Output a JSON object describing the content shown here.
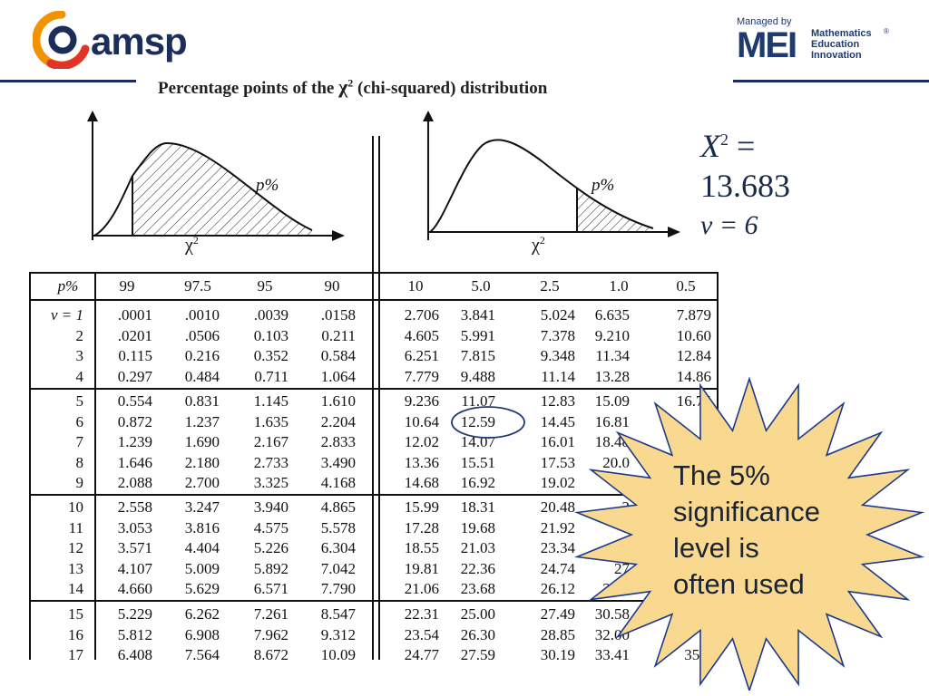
{
  "header": {
    "logo_text": "amsp",
    "managed_by": "Managed by",
    "mei_mark": "MEI",
    "mei_line1": "Mathematics",
    "mei_line2": "Education",
    "mei_line3": "Innovation",
    "reg": "®"
  },
  "title": {
    "prefix": "Percentage points of the ",
    "chi": "χ",
    "sup": "2",
    "suffix": " (chi-squared) distribution"
  },
  "graphs": {
    "left_p": "p%",
    "right_p": "p%",
    "left_axis": "χ",
    "right_axis": "χ",
    "sup": "2"
  },
  "annotation": {
    "x_label": "X",
    "sup": "2",
    "equals": " =",
    "value": "13.683",
    "nu_label": "ν = 6"
  },
  "table": {
    "p_label": "p%",
    "left_headers": [
      "99",
      "97.5",
      "95",
      "90"
    ],
    "right_headers": [
      "10",
      "5.0",
      "2.5",
      "1.0",
      "0.5"
    ],
    "row_labels": [
      "ν = 1",
      "2",
      "3",
      "4",
      "5",
      "6",
      "7",
      "8",
      "9",
      "10",
      "11",
      "12",
      "13",
      "14",
      "15",
      "16",
      "17"
    ],
    "left_rows": [
      [
        ".0001",
        ".0010",
        ".0039",
        ".0158"
      ],
      [
        ".0201",
        ".0506",
        "0.103",
        "0.211"
      ],
      [
        "0.115",
        "0.216",
        "0.352",
        "0.584"
      ],
      [
        "0.297",
        "0.484",
        "0.711",
        "1.064"
      ],
      [
        "0.554",
        "0.831",
        "1.145",
        "1.610"
      ],
      [
        "0.872",
        "1.237",
        "1.635",
        "2.204"
      ],
      [
        "1.239",
        "1.690",
        "2.167",
        "2.833"
      ],
      [
        "1.646",
        "2.180",
        "2.733",
        "3.490"
      ],
      [
        "2.088",
        "2.700",
        "3.325",
        "4.168"
      ],
      [
        "2.558",
        "3.247",
        "3.940",
        "4.865"
      ],
      [
        "3.053",
        "3.816",
        "4.575",
        "5.578"
      ],
      [
        "3.571",
        "4.404",
        "5.226",
        "6.304"
      ],
      [
        "4.107",
        "5.009",
        "5.892",
        "7.042"
      ],
      [
        "4.660",
        "5.629",
        "6.571",
        "7.790"
      ],
      [
        "5.229",
        "6.262",
        "7.261",
        "8.547"
      ],
      [
        "5.812",
        "6.908",
        "7.962",
        "9.312"
      ],
      [
        "6.408",
        "7.564",
        "8.672",
        "10.09"
      ]
    ],
    "right_rows": [
      [
        "2.706",
        "3.841",
        "5.024",
        "6.635",
        "7.879"
      ],
      [
        "4.605",
        "5.991",
        "7.378",
        "9.210",
        "10.60"
      ],
      [
        "6.251",
        "7.815",
        "9.348",
        "11.34",
        "12.84"
      ],
      [
        "7.779",
        "9.488",
        "11.14",
        "13.28",
        "14.86"
      ],
      [
        "9.236",
        "11.07",
        "12.83",
        "15.09",
        "16.75"
      ],
      [
        "10.64",
        "12.59",
        "14.45",
        "16.81",
        ""
      ],
      [
        "12.02",
        "14.07",
        "16.01",
        "18.48",
        ""
      ],
      [
        "13.36",
        "15.51",
        "17.53",
        "20.0",
        ""
      ],
      [
        "14.68",
        "16.92",
        "19.02",
        "2",
        ""
      ],
      [
        "15.99",
        "18.31",
        "20.48",
        "2",
        ""
      ],
      [
        "17.28",
        "19.68",
        "21.92",
        "",
        ""
      ],
      [
        "18.55",
        "21.03",
        "23.34",
        "2",
        ""
      ],
      [
        "19.81",
        "22.36",
        "24.74",
        "27",
        ""
      ],
      [
        "21.06",
        "23.68",
        "26.12",
        "29.1",
        ""
      ],
      [
        "22.31",
        "25.00",
        "27.49",
        "30.58",
        ""
      ],
      [
        "23.54",
        "26.30",
        "28.85",
        "32.00",
        ""
      ],
      [
        "24.77",
        "27.59",
        "30.19",
        "33.41",
        "35.7"
      ]
    ]
  },
  "callout": {
    "line1": "The 5%",
    "line2": "significance",
    "line3": "level is",
    "line4": "often used"
  },
  "colors": {
    "amsp_navy": "#1c2d5a",
    "amsp_orange": "#f39200",
    "amsp_red": "#e2332b",
    "mei_blue": "#1e3a6e",
    "burst_fill": "#f8d98f",
    "burst_stroke": "#1e3a8a",
    "circle_stroke": "#1f3a73"
  }
}
